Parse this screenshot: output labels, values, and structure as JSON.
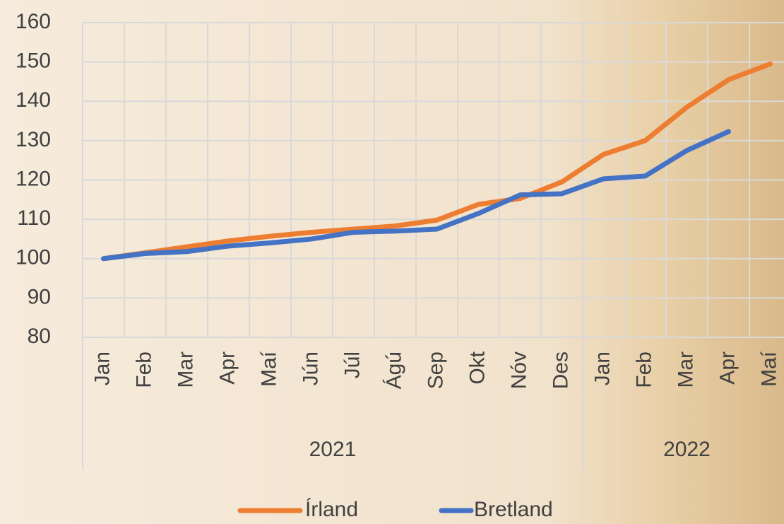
{
  "chart_data": {
    "type": "line",
    "categories": [
      "Jan",
      "Feb",
      "Mar",
      "Apr",
      "Maí",
      "Jún",
      "Júl",
      "Ágú",
      "Sep",
      "Okt",
      "Nóv",
      "Des",
      "Jan",
      "Feb",
      "Mar",
      "Apr",
      "Maí"
    ],
    "groups": [
      {
        "label": "2021",
        "count": 12
      },
      {
        "label": "2022",
        "count": 5
      }
    ],
    "series": [
      {
        "name": "Írland",
        "color": "#ed7d31",
        "values": [
          100,
          101.5,
          103,
          104.5,
          105.7,
          106.7,
          107.5,
          108.3,
          109.8,
          113.8,
          115.3,
          119.5,
          126.5,
          130,
          138.5,
          145.5,
          149.5
        ]
      },
      {
        "name": "Bretland",
        "color": "#4472c4",
        "values": [
          100,
          101.3,
          101.8,
          103.2,
          104,
          105,
          106.7,
          107,
          107.5,
          111.5,
          116.2,
          116.5,
          120.3,
          121,
          127.5,
          132.3,
          null
        ]
      }
    ],
    "ylim": [
      80,
      160
    ],
    "yticks": [
      80,
      90,
      100,
      110,
      120,
      130,
      140,
      150,
      160
    ],
    "grid": true,
    "legend": "bottom"
  }
}
